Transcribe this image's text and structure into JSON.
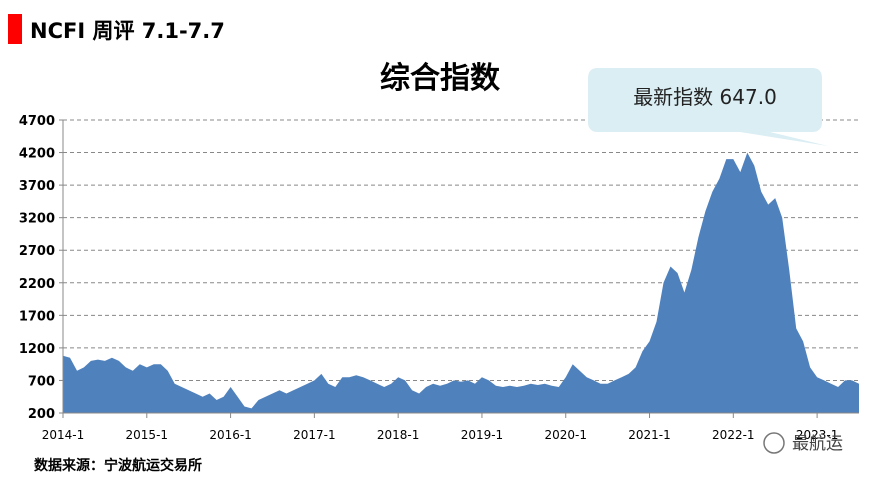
{
  "header": "NCFI 周评 7.1-7.7",
  "chart_data": {
    "type": "area",
    "title": "综合指数",
    "annotation": "最新指数 647.0",
    "source": "数据来源：宁波航运交易所",
    "watermark": "最航运",
    "color": "#4f81bd",
    "grid": true,
    "ylim": [
      200,
      4700
    ],
    "yticks": [
      200,
      700,
      1200,
      1700,
      2200,
      2700,
      3200,
      3700,
      4200,
      4700
    ],
    "categories": [
      "2014-1",
      null,
      null,
      null,
      null,
      null,
      null,
      null,
      null,
      null,
      null,
      null,
      "2015-1",
      null,
      null,
      null,
      null,
      null,
      null,
      null,
      null,
      null,
      null,
      null,
      "2016-1",
      null,
      null,
      null,
      null,
      null,
      null,
      null,
      null,
      null,
      null,
      null,
      "2017-1",
      null,
      null,
      null,
      null,
      null,
      null,
      null,
      null,
      null,
      null,
      null,
      "2018-1",
      null,
      null,
      null,
      null,
      null,
      null,
      null,
      null,
      null,
      null,
      null,
      "2019-1",
      null,
      null,
      null,
      null,
      null,
      null,
      null,
      null,
      null,
      null,
      null,
      "2020-1",
      null,
      null,
      null,
      null,
      null,
      null,
      null,
      null,
      null,
      null,
      null,
      "2021-1",
      null,
      null,
      null,
      null,
      null,
      null,
      null,
      null,
      null,
      null,
      null,
      "2022-1",
      null,
      null,
      null,
      null,
      null,
      null,
      null,
      null,
      null,
      null,
      null,
      "2023-1",
      null,
      null,
      null,
      null,
      null,
      null
    ],
    "values": [
      1080,
      1050,
      850,
      900,
      1000,
      1020,
      1000,
      1050,
      1000,
      900,
      850,
      950,
      900,
      950,
      950,
      850,
      650,
      600,
      550,
      500,
      450,
      500,
      400,
      450,
      600,
      450,
      300,
      270,
      400,
      450,
      500,
      550,
      500,
      550,
      600,
      650,
      700,
      800,
      650,
      600,
      750,
      750,
      780,
      750,
      700,
      650,
      600,
      650,
      750,
      700,
      550,
      500,
      600,
      650,
      620,
      650,
      700,
      680,
      700,
      650,
      750,
      700,
      620,
      600,
      620,
      600,
      620,
      650,
      630,
      650,
      620,
      600,
      750,
      950,
      850,
      750,
      700,
      650,
      650,
      700,
      750,
      800,
      900,
      1150,
      1300,
      1600,
      2200,
      2450,
      2350,
      2050,
      2400,
      2900,
      3300,
      3600,
      3800,
      4100,
      4100,
      3900,
      4200,
      4000,
      3600,
      3400,
      3500,
      3200,
      2400,
      1500,
      1300,
      900,
      750,
      700,
      650,
      600,
      700,
      700,
      650
    ]
  }
}
